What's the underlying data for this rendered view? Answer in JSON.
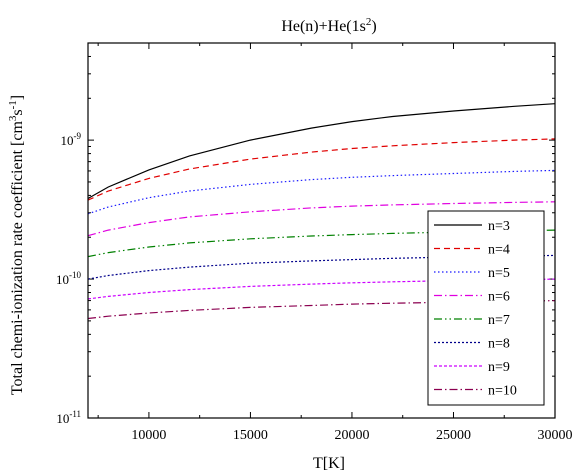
{
  "chart_data": {
    "type": "line",
    "title": "He(n)+He(1s²)",
    "title_parts": {
      "base": "He(n)+He(1s",
      "sup": "2",
      "tail": ")"
    },
    "xlabel": "T[K]",
    "ylabel": "Total chemi-ionization rate coefficient [cm³s⁻¹]",
    "ylabel_parts": {
      "base": "Total chemi-ionization rate coefficient [cm",
      "sup1": "3",
      "mid": "s",
      "sup2": "-1",
      "tail": "]"
    },
    "x_scale": "linear",
    "y_scale": "log",
    "xlim": [
      7000,
      30000
    ],
    "ylim": [
      1e-11,
      5e-09
    ],
    "x_ticks": [
      10000,
      15000,
      20000,
      25000,
      30000
    ],
    "x_tick_labels": [
      "10000",
      "15000",
      "20000",
      "25000",
      "30000"
    ],
    "y_ticks": [
      {
        "value": 1e-11,
        "base": "10",
        "exp": "-11"
      },
      {
        "value": 1e-10,
        "base": "10",
        "exp": "-10"
      },
      {
        "value": 1e-09,
        "base": "10",
        "exp": "-9"
      }
    ],
    "grid": false,
    "legend_position": "bottom-right",
    "x": [
      7000,
      8000,
      10000,
      12000,
      15000,
      18000,
      20000,
      22000,
      25000,
      28000,
      30000
    ],
    "series": [
      {
        "name": "n=3",
        "color": "#000000",
        "dash": "solid",
        "values": [
          3.8e-10,
          4.6e-10,
          6.1e-10,
          7.7e-10,
          1e-09,
          1.22e-09,
          1.36e-09,
          1.48e-09,
          1.62e-09,
          1.75e-09,
          1.83e-09
        ]
      },
      {
        "name": "n=4",
        "color": "#e00000",
        "dash": "dashed",
        "values": [
          3.7e-10,
          4.3e-10,
          5.3e-10,
          6.2e-10,
          7.3e-10,
          8.2e-10,
          8.7e-10,
          9.1e-10,
          9.6e-10,
          1e-09,
          1.02e-09
        ]
      },
      {
        "name": "n=5",
        "color": "#1a1aff",
        "dash": "dotted",
        "values": [
          2.95e-10,
          3.3e-10,
          3.85e-10,
          4.3e-10,
          4.8e-10,
          5.2e-10,
          5.4e-10,
          5.55e-10,
          5.75e-10,
          5.95e-10,
          6.05e-10
        ]
      },
      {
        "name": "n=6",
        "color": "#e000e0",
        "dash": "dashdot",
        "values": [
          2.05e-10,
          2.25e-10,
          2.55e-10,
          2.8e-10,
          3.05e-10,
          3.25e-10,
          3.35e-10,
          3.42e-10,
          3.5e-10,
          3.56e-10,
          3.6e-10
        ]
      },
      {
        "name": "n=7",
        "color": "#008000",
        "dash": "dashdotdot",
        "values": [
          1.45e-10,
          1.55e-10,
          1.7e-10,
          1.82e-10,
          1.95e-10,
          2.04e-10,
          2.09e-10,
          2.13e-10,
          2.18e-10,
          2.22e-10,
          2.25e-10
        ]
      },
      {
        "name": "n=8",
        "color": "#00008b",
        "dash": "shortdot",
        "values": [
          1e-10,
          1.06e-10,
          1.15e-10,
          1.22e-10,
          1.3e-10,
          1.35e-10,
          1.38e-10,
          1.41e-10,
          1.44e-10,
          1.46e-10,
          1.48e-10
        ]
      },
      {
        "name": "n=9",
        "color": "#cc00ff",
        "dash": "shortdash",
        "values": [
          7.2e-11,
          7.5e-11,
          8e-11,
          8.4e-11,
          8.85e-11,
          9.2e-11,
          9.4e-11,
          9.55e-11,
          9.75e-11,
          9.9e-11,
          1e-10
        ]
      },
      {
        "name": "n=10",
        "color": "#8b0050",
        "dash": "dashdot",
        "values": [
          5.2e-11,
          5.4e-11,
          5.7e-11,
          5.95e-11,
          6.25e-11,
          6.45e-11,
          6.6e-11,
          6.7e-11,
          6.82e-11,
          6.92e-11,
          7e-11
        ]
      }
    ]
  }
}
